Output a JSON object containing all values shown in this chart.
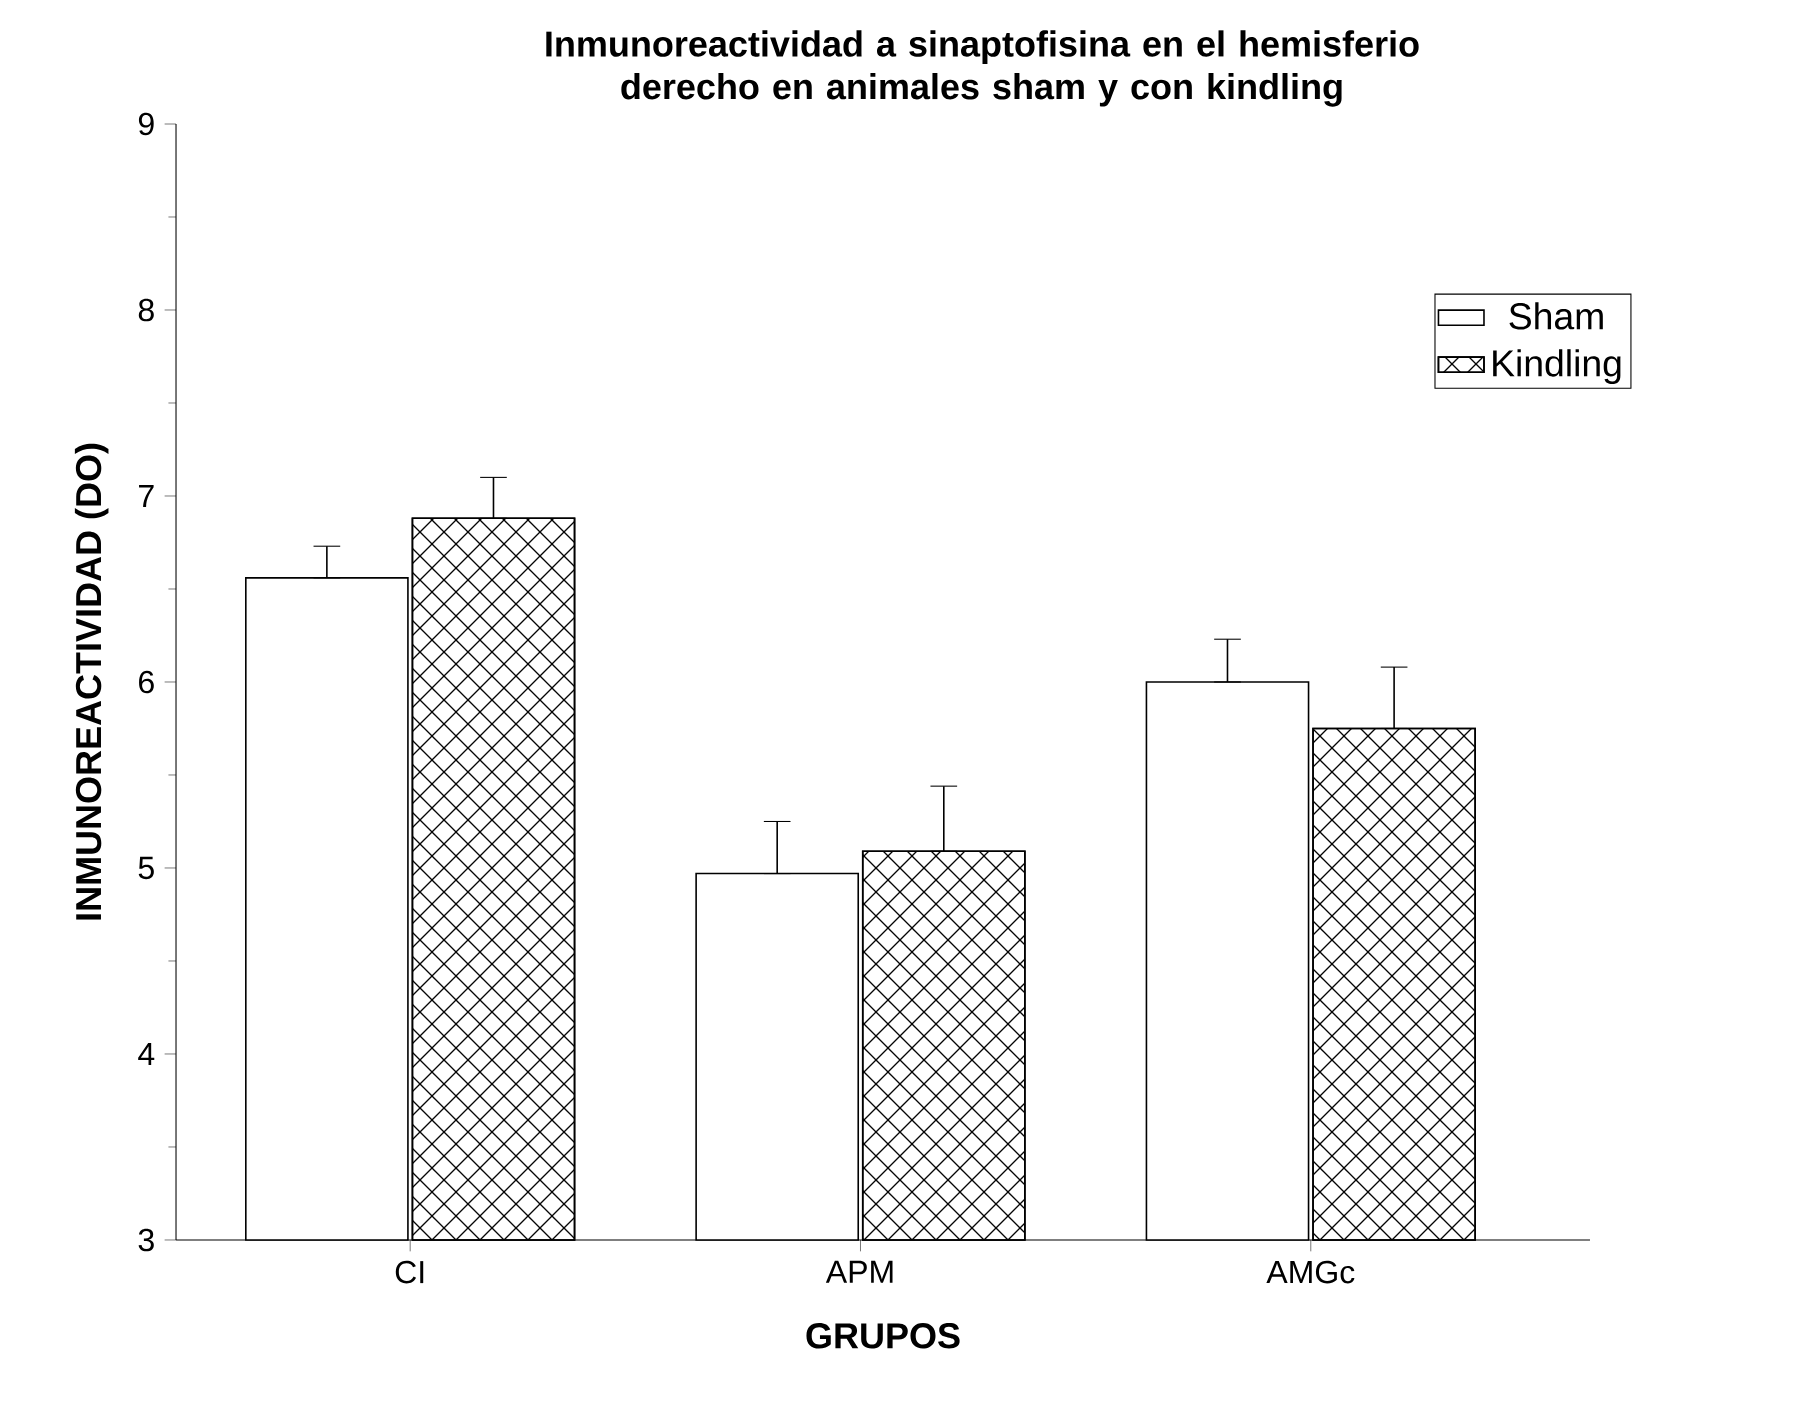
{
  "chart_data": {
    "type": "bar",
    "title": "Inmunoreactividad a sinaptofisina en el hemisferio derecho en animales sham y con kindling",
    "xlabel": "GRUPOS",
    "ylabel": "INMUNOREACTIVIDAD (DO)",
    "categories": [
      "CI",
      "APM",
      "AMGc"
    ],
    "series": [
      {
        "name": "Sham",
        "color": "#ffffff",
        "values": [
          6.56,
          4.97,
          6.0
        ],
        "errors": [
          [
            6.56,
            6.73
          ],
          [
            4.97,
            5.25
          ],
          [
            6.0,
            6.23
          ]
        ]
      },
      {
        "name": "Kindling",
        "color": "#ffffff",
        "values": [
          6.88,
          5.09,
          5.75
        ],
        "errors": [
          [
            6.88,
            7.1
          ],
          [
            5.09,
            5.44
          ],
          [
            5.75,
            6.08
          ]
        ]
      }
    ],
    "ylim": [
      3,
      9
    ],
    "yticks": [
      3,
      4,
      5,
      6,
      7,
      8,
      9
    ],
    "legend": "top right"
  }
}
